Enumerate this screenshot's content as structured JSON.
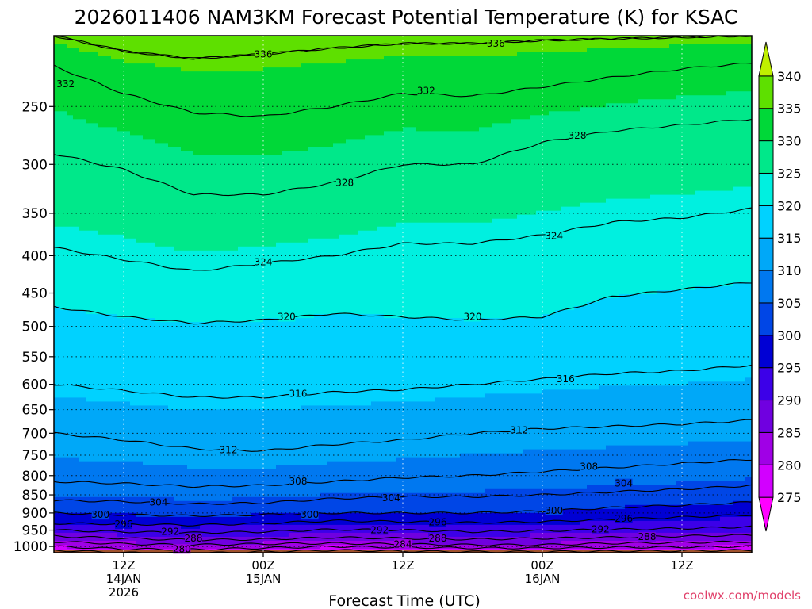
{
  "page": {
    "credit": "coolwx.com/models"
  },
  "chart_data": {
    "type": "heatmap",
    "title": "2026011406 NAM3KM Forecast Potential Temperature (K) for KSAC",
    "xlabel": "Forecast Time (UTC)",
    "ylabel": "",
    "y_scale": "pressure-log",
    "ylim": [
      1020,
      200
    ],
    "y_ticks": [
      250,
      300,
      350,
      400,
      450,
      500,
      550,
      600,
      650,
      700,
      750,
      800,
      850,
      900,
      950,
      1000
    ],
    "x_ticks": [
      {
        "hour": 6,
        "labels": [
          "12Z",
          "14JAN",
          "2026"
        ]
      },
      {
        "hour": 18,
        "labels": [
          "00Z",
          "15JAN"
        ]
      },
      {
        "hour": 30,
        "labels": [
          "12Z"
        ]
      },
      {
        "hour": 42,
        "labels": [
          "00Z",
          "16JAN"
        ]
      },
      {
        "hour": 54,
        "labels": [
          "12Z"
        ]
      }
    ],
    "xlim": [
      0,
      60
    ],
    "grid": true,
    "colorbar": {
      "levels": [
        275,
        280,
        285,
        290,
        295,
        300,
        305,
        310,
        315,
        320,
        325,
        330,
        335,
        340
      ],
      "colors": [
        "#ff00ff",
        "#d200ff",
        "#a000e6",
        "#7000e0",
        "#3c00e8",
        "#0000d4",
        "#0046e6",
        "#0078f0",
        "#00a8f8",
        "#00d2ff",
        "#00f0e0",
        "#00e88a",
        "#00d838",
        "#5ee000",
        "#c0f000"
      ]
    },
    "contour_interval": 4,
    "ground_color": "#a0522d",
    "profiles": [
      {
        "hour": 0,
        "levels": [
          [
            280,
            1000
          ],
          [
            284,
            985
          ],
          [
            288,
            968
          ],
          [
            292,
            950
          ],
          [
            296,
            930
          ],
          [
            300,
            900
          ],
          [
            304,
            865
          ],
          [
            308,
            815
          ],
          [
            312,
            700
          ],
          [
            316,
            600
          ],
          [
            320,
            470
          ],
          [
            324,
            390
          ],
          [
            328,
            290
          ],
          [
            332,
            220
          ],
          [
            336,
            200
          ]
        ]
      },
      {
        "hour": 6,
        "levels": [
          [
            280,
            1008
          ],
          [
            284,
            992
          ],
          [
            288,
            975
          ],
          [
            292,
            955
          ],
          [
            296,
            932
          ],
          [
            300,
            905
          ],
          [
            304,
            868
          ],
          [
            308,
            820
          ],
          [
            312,
            715
          ],
          [
            316,
            612
          ],
          [
            320,
            485
          ],
          [
            324,
            405
          ],
          [
            328,
            305
          ],
          [
            332,
            240
          ],
          [
            336,
            210
          ]
        ]
      },
      {
        "hour": 12,
        "levels": [
          [
            280,
            1010
          ],
          [
            284,
            995
          ],
          [
            288,
            980
          ],
          [
            292,
            958
          ],
          [
            296,
            935
          ],
          [
            300,
            908
          ],
          [
            304,
            875
          ],
          [
            308,
            828
          ],
          [
            312,
            735
          ],
          [
            316,
            625
          ],
          [
            320,
            495
          ],
          [
            324,
            420
          ],
          [
            328,
            330
          ],
          [
            332,
            255
          ],
          [
            336,
            215
          ]
        ]
      },
      {
        "hour": 18,
        "levels": [
          [
            280,
            1005
          ],
          [
            284,
            992
          ],
          [
            288,
            978
          ],
          [
            292,
            955
          ],
          [
            296,
            930
          ],
          [
            300,
            905
          ],
          [
            304,
            872
          ],
          [
            308,
            825
          ],
          [
            312,
            740
          ],
          [
            316,
            625
          ],
          [
            320,
            490
          ],
          [
            324,
            410
          ],
          [
            328,
            330
          ],
          [
            332,
            258
          ],
          [
            336,
            212
          ]
        ]
      },
      {
        "hour": 24,
        "levels": [
          [
            280,
            1000
          ],
          [
            284,
            990
          ],
          [
            288,
            972
          ],
          [
            292,
            948
          ],
          [
            296,
            922
          ],
          [
            300,
            900
          ],
          [
            304,
            860
          ],
          [
            308,
            815
          ],
          [
            312,
            725
          ],
          [
            316,
            615
          ],
          [
            320,
            480
          ],
          [
            324,
            400
          ],
          [
            328,
            318
          ],
          [
            332,
            250
          ],
          [
            336,
            208
          ]
        ]
      },
      {
        "hour": 30,
        "levels": [
          [
            280,
            1003
          ],
          [
            284,
            993
          ],
          [
            288,
            975
          ],
          [
            292,
            950
          ],
          [
            296,
            925
          ],
          [
            300,
            900
          ],
          [
            304,
            855
          ],
          [
            308,
            805
          ],
          [
            312,
            715
          ],
          [
            316,
            610
          ],
          [
            320,
            485
          ],
          [
            324,
            385
          ],
          [
            328,
            300
          ],
          [
            332,
            240
          ],
          [
            336,
            205
          ]
        ]
      },
      {
        "hour": 36,
        "levels": [
          [
            280,
            1005
          ],
          [
            284,
            995
          ],
          [
            288,
            978
          ],
          [
            292,
            955
          ],
          [
            296,
            928
          ],
          [
            300,
            900
          ],
          [
            304,
            855
          ],
          [
            308,
            800
          ],
          [
            312,
            700
          ],
          [
            316,
            600
          ],
          [
            320,
            490
          ],
          [
            324,
            385
          ],
          [
            328,
            300
          ],
          [
            332,
            242
          ],
          [
            336,
            205
          ]
        ]
      },
      {
        "hour": 42,
        "levels": [
          [
            280,
            1005
          ],
          [
            284,
            995
          ],
          [
            288,
            975
          ],
          [
            292,
            952
          ],
          [
            296,
            925
          ],
          [
            300,
            895
          ],
          [
            304,
            850
          ],
          [
            308,
            790
          ],
          [
            312,
            690
          ],
          [
            316,
            590
          ],
          [
            320,
            485
          ],
          [
            324,
            375
          ],
          [
            328,
            280
          ],
          [
            332,
            235
          ],
          [
            336,
            203
          ]
        ]
      },
      {
        "hour": 48,
        "levels": [
          [
            280,
            1003
          ],
          [
            284,
            990
          ],
          [
            288,
            972
          ],
          [
            292,
            948
          ],
          [
            296,
            918
          ],
          [
            300,
            885
          ],
          [
            304,
            842
          ],
          [
            308,
            780
          ],
          [
            312,
            685
          ],
          [
            316,
            580
          ],
          [
            320,
            455
          ],
          [
            324,
            360
          ],
          [
            328,
            270
          ],
          [
            332,
            228
          ],
          [
            336,
            202
          ]
        ]
      },
      {
        "hour": 54,
        "levels": [
          [
            280,
            1002
          ],
          [
            284,
            988
          ],
          [
            288,
            968
          ],
          [
            292,
            945
          ],
          [
            296,
            912
          ],
          [
            300,
            878
          ],
          [
            304,
            835
          ],
          [
            308,
            770
          ],
          [
            312,
            680
          ],
          [
            316,
            575
          ],
          [
            320,
            445
          ],
          [
            324,
            355
          ],
          [
            328,
            265
          ],
          [
            332,
            222
          ],
          [
            336,
            201
          ]
        ]
      },
      {
        "hour": 60,
        "levels": [
          [
            280,
            1000
          ],
          [
            284,
            985
          ],
          [
            288,
            965
          ],
          [
            292,
            940
          ],
          [
            296,
            905
          ],
          [
            300,
            870
          ],
          [
            304,
            825
          ],
          [
            308,
            760
          ],
          [
            312,
            672
          ],
          [
            316,
            565
          ],
          [
            320,
            435
          ],
          [
            324,
            345
          ],
          [
            328,
            260
          ],
          [
            332,
            218
          ],
          [
            336,
            200
          ]
        ]
      }
    ],
    "contour_labels": [
      {
        "value": 336,
        "hour": 18,
        "p": 212
      },
      {
        "value": 336,
        "hour": 38,
        "p": 205
      },
      {
        "value": 332,
        "hour": 1,
        "p": 233
      },
      {
        "value": 332,
        "hour": 32,
        "p": 238
      },
      {
        "value": 328,
        "hour": 25,
        "p": 318
      },
      {
        "value": 328,
        "hour": 45,
        "p": 274
      },
      {
        "value": 324,
        "hour": 18,
        "p": 408
      },
      {
        "value": 324,
        "hour": 43,
        "p": 376
      },
      {
        "value": 320,
        "hour": 20,
        "p": 485
      },
      {
        "value": 320,
        "hour": 36,
        "p": 485
      },
      {
        "value": 316,
        "hour": 21,
        "p": 618
      },
      {
        "value": 316,
        "hour": 44,
        "p": 590
      },
      {
        "value": 312,
        "hour": 15,
        "p": 738
      },
      {
        "value": 312,
        "hour": 40,
        "p": 693
      },
      {
        "value": 308,
        "hour": 21,
        "p": 815
      },
      {
        "value": 308,
        "hour": 46,
        "p": 778
      },
      {
        "value": 304,
        "hour": 9,
        "p": 870
      },
      {
        "value": 304,
        "hour": 29,
        "p": 858
      },
      {
        "value": 304,
        "hour": 49,
        "p": 820
      },
      {
        "value": 300,
        "hour": 4,
        "p": 905
      },
      {
        "value": 300,
        "hour": 22,
        "p": 905
      },
      {
        "value": 300,
        "hour": 43,
        "p": 893
      },
      {
        "value": 296,
        "hour": 6,
        "p": 932
      },
      {
        "value": 296,
        "hour": 33,
        "p": 926
      },
      {
        "value": 296,
        "hour": 49,
        "p": 916
      },
      {
        "value": 292,
        "hour": 10,
        "p": 955
      },
      {
        "value": 292,
        "hour": 28,
        "p": 950
      },
      {
        "value": 292,
        "hour": 47,
        "p": 948
      },
      {
        "value": 288,
        "hour": 12,
        "p": 975
      },
      {
        "value": 288,
        "hour": 33,
        "p": 975
      },
      {
        "value": 288,
        "hour": 51,
        "p": 970
      },
      {
        "value": 284,
        "hour": 30,
        "p": 993
      },
      {
        "value": 280,
        "hour": 11,
        "p": 1008
      }
    ]
  }
}
